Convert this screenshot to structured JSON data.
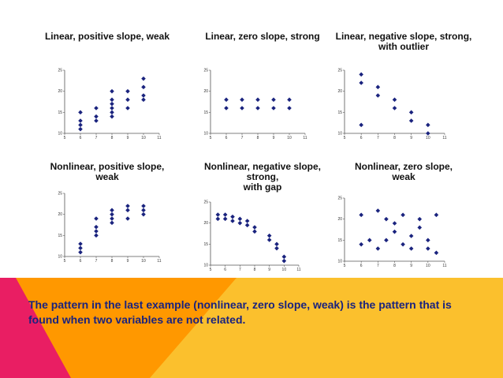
{
  "caption": "The pattern in the last example (nonlinear, zero slope, weak) is the pattern that is found when two variables are not related.",
  "colors": {
    "marker": "#1a237e",
    "banner_pink": "#e91e63",
    "banner_orange": "#ff9800",
    "banner_yellow": "#fbc02d",
    "caption": "#1a237e"
  },
  "chart_data": [
    {
      "type": "scatter",
      "title": "Linear, positive slope, weak",
      "xlim": [
        5,
        11
      ],
      "ylim": [
        10,
        25
      ],
      "xticks": [
        5,
        6,
        7,
        8,
        9,
        10,
        11
      ],
      "yticks": [
        10,
        15,
        20,
        25
      ],
      "series": [
        {
          "points": [
            [
              6,
              11
            ],
            [
              6,
              12
            ],
            [
              6,
              13
            ],
            [
              6,
              15
            ],
            [
              7,
              13
            ],
            [
              7,
              14
            ],
            [
              7,
              16
            ],
            [
              8,
              14
            ],
            [
              8,
              15
            ],
            [
              8,
              16
            ],
            [
              8,
              17
            ],
            [
              8,
              18
            ],
            [
              8,
              20
            ],
            [
              9,
              16
            ],
            [
              9,
              18
            ],
            [
              9,
              20
            ],
            [
              10,
              18
            ],
            [
              10,
              19
            ],
            [
              10,
              21
            ],
            [
              10,
              23
            ]
          ]
        }
      ]
    },
    {
      "type": "scatter",
      "title": "Linear, zero slope, strong",
      "xlim": [
        5,
        11
      ],
      "ylim": [
        10,
        25
      ],
      "xticks": [
        5,
        6,
        7,
        8,
        9,
        10,
        11
      ],
      "yticks": [
        10,
        15,
        20,
        25
      ],
      "series": [
        {
          "points": [
            [
              6,
              16
            ],
            [
              6,
              18
            ],
            [
              7,
              16
            ],
            [
              7,
              18
            ],
            [
              8,
              16
            ],
            [
              8,
              18
            ],
            [
              9,
              16
            ],
            [
              9,
              18
            ],
            [
              10,
              16
            ],
            [
              10,
              18
            ]
          ]
        }
      ]
    },
    {
      "type": "scatter",
      "title": "Linear, negative slope, strong,\nwith outlier",
      "xlim": [
        5,
        11
      ],
      "ylim": [
        10,
        25
      ],
      "xticks": [
        5,
        6,
        7,
        8,
        9,
        10,
        11
      ],
      "yticks": [
        10,
        15,
        20,
        25
      ],
      "series": [
        {
          "points": [
            [
              6,
              24
            ],
            [
              6,
              22
            ],
            [
              6,
              12
            ],
            [
              7,
              21
            ],
            [
              7,
              19
            ],
            [
              8,
              18
            ],
            [
              8,
              16
            ],
            [
              9,
              15
            ],
            [
              9,
              13
            ],
            [
              10,
              12
            ],
            [
              10,
              10
            ]
          ]
        }
      ]
    },
    {
      "type": "scatter",
      "title": "Nonlinear, positive slope,\nweak",
      "xlim": [
        5,
        11
      ],
      "ylim": [
        10,
        25
      ],
      "xticks": [
        5,
        6,
        7,
        8,
        9,
        10,
        11
      ],
      "yticks": [
        10,
        15,
        20,
        25
      ],
      "series": [
        {
          "points": [
            [
              6,
              11
            ],
            [
              6,
              12
            ],
            [
              6,
              13
            ],
            [
              7,
              15
            ],
            [
              7,
              16
            ],
            [
              7,
              17
            ],
            [
              7,
              19
            ],
            [
              8,
              18
            ],
            [
              8,
              19
            ],
            [
              8,
              20
            ],
            [
              8,
              21
            ],
            [
              9,
              19
            ],
            [
              9,
              21
            ],
            [
              9,
              22
            ],
            [
              10,
              20
            ],
            [
              10,
              21
            ],
            [
              10,
              22
            ]
          ]
        }
      ]
    },
    {
      "type": "scatter",
      "title": "Nonlinear, negative slope,\nstrong,\nwith gap",
      "xlim": [
        5,
        11
      ],
      "ylim": [
        10,
        25
      ],
      "xticks": [
        5,
        6,
        7,
        8,
        9,
        10,
        11
      ],
      "yticks": [
        10,
        15,
        20,
        25
      ],
      "series": [
        {
          "points": [
            [
              5.5,
              22
            ],
            [
              5.5,
              21
            ],
            [
              6,
              22
            ],
            [
              6,
              21
            ],
            [
              6.5,
              21.5
            ],
            [
              6.5,
              20.5
            ],
            [
              7,
              21
            ],
            [
              7,
              20
            ],
            [
              7.5,
              20.5
            ],
            [
              7.5,
              19.5
            ],
            [
              8,
              19
            ],
            [
              8,
              18
            ],
            [
              9,
              17
            ],
            [
              9,
              16
            ],
            [
              9.5,
              15
            ],
            [
              9.5,
              14
            ],
            [
              10,
              12
            ],
            [
              10,
              11
            ]
          ]
        }
      ]
    },
    {
      "type": "scatter",
      "title": "Nonlinear, zero slope,\nweak",
      "xlim": [
        5,
        11
      ],
      "ylim": [
        10,
        25
      ],
      "xticks": [
        5,
        6,
        7,
        8,
        9,
        10,
        11
      ],
      "yticks": [
        10,
        15,
        20,
        25
      ],
      "series": [
        {
          "points": [
            [
              6,
              14
            ],
            [
              6,
              21
            ],
            [
              6.5,
              15
            ],
            [
              7,
              22
            ],
            [
              7,
              13
            ],
            [
              7.5,
              20
            ],
            [
              7.5,
              15
            ],
            [
              8,
              19
            ],
            [
              8,
              17
            ],
            [
              8.5,
              14
            ],
            [
              8.5,
              21
            ],
            [
              9,
              16
            ],
            [
              9,
              13
            ],
            [
              9.5,
              20
            ],
            [
              9.5,
              18
            ],
            [
              10,
              15
            ],
            [
              10,
              13
            ],
            [
              10.5,
              21
            ],
            [
              10.5,
              12
            ]
          ]
        }
      ]
    }
  ]
}
